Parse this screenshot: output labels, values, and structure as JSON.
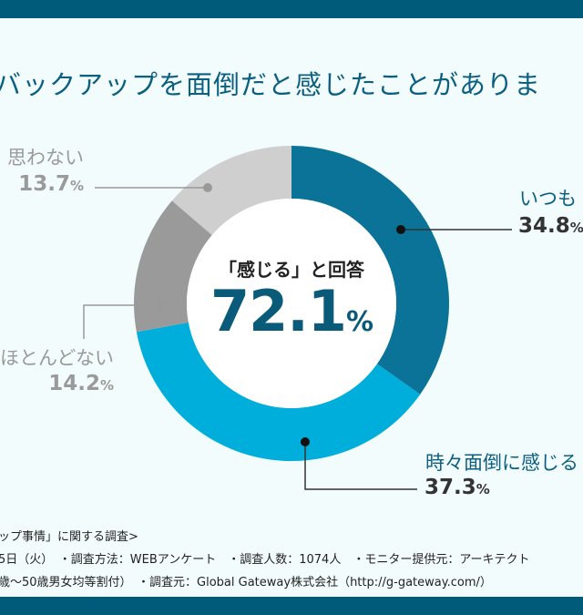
{
  "title": "バックアップを面倒だと感じたことがありま",
  "center": {
    "caption": "「感じる」と回答",
    "value": "72.1",
    "unit": "%"
  },
  "colors": {
    "bar": "#005a7a",
    "background": "#f3fcfd",
    "title": "#0b5f80"
  },
  "chart_data": {
    "type": "pie",
    "variant": "donut",
    "categories": [
      "いつも",
      "時々面倒に感じる",
      "ほとんどない",
      "思わない"
    ],
    "values": [
      34.8,
      37.3,
      14.2,
      13.7
    ],
    "unit": "%",
    "colors": [
      "#0a7397",
      "#00aedb",
      "#9a9a9a",
      "#cfcfcf"
    ],
    "label_colors": [
      "#0b5f80",
      "#0b5f80",
      "#9a9a9a",
      "#9a9a9a"
    ],
    "pct_colors": [
      "#333333",
      "#333333",
      "#9a9a9a",
      "#9a9a9a"
    ]
  },
  "footnotes": [
    "ップ事情」に関する調査>",
    "5日（火）　・調査方法：WEBアンケート　・調査人数：1074人　・モニター提供元：アーキテクト",
    "歳〜50歳男女均等割付）　・調査元：Global Gateway株式会社（http://g-gateway.com/）"
  ]
}
